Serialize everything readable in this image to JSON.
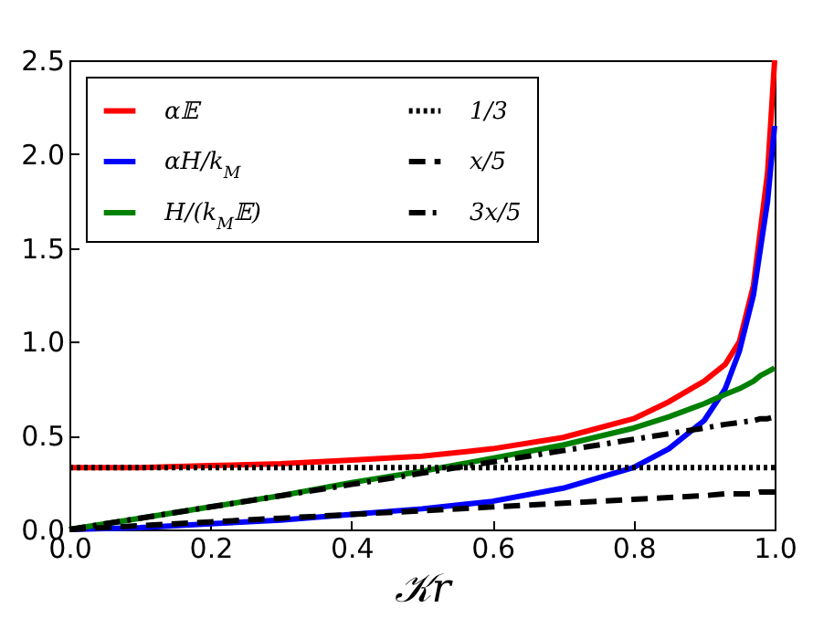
{
  "chart_data": {
    "type": "line",
    "xlabel": "𝒦r",
    "xlim": [
      0,
      1
    ],
    "ylim": [
      0,
      2.5
    ],
    "xticks": [
      {
        "value": 0,
        "label": "0.0"
      },
      0.2,
      0.4,
      0.6,
      0.8,
      {
        "value": 1,
        "label": "1.0"
      }
    ],
    "yticks": [
      {
        "value": 0,
        "label": "0.0"
      },
      0.5,
      {
        "value": 1,
        "label": "1.0"
      },
      1.5,
      {
        "value": 2,
        "label": "2.0"
      },
      2.5
    ],
    "x": [
      0,
      0.1,
      0.2,
      0.3,
      0.4,
      0.5,
      0.6,
      0.7,
      0.8,
      0.85,
      0.9,
      0.93,
      0.95,
      0.97,
      0.98,
      0.99,
      1.0
    ],
    "grid": false,
    "legend": "top left",
    "series": [
      {
        "name": "α𝔼",
        "color": "#ff0000",
        "line_style": "solid",
        "values": [
          0.33,
          0.33,
          0.34,
          0.35,
          0.37,
          0.39,
          0.43,
          0.49,
          0.59,
          0.68,
          0.79,
          0.88,
          1.0,
          1.3,
          1.6,
          1.9,
          2.5
        ]
      },
      {
        "name": "αH/k$_{M}$",
        "color": "#0000ff",
        "line_style": "solid",
        "values": [
          0,
          0.01,
          0.03,
          0.05,
          0.08,
          0.11,
          0.15,
          0.22,
          0.33,
          0.43,
          0.58,
          0.75,
          0.95,
          1.25,
          1.5,
          1.75,
          2.15
        ]
      },
      {
        "name": "H/(k$_{M}$𝔼)",
        "color": "#008000",
        "line_style": "solid",
        "values": [
          0,
          0.06,
          0.12,
          0.18,
          0.25,
          0.31,
          0.38,
          0.45,
          0.54,
          0.6,
          0.67,
          0.72,
          0.75,
          0.79,
          0.82,
          0.84,
          0.86
        ]
      },
      {
        "name": "1/3",
        "color": "#000000",
        "line_style": "dotted",
        "values": [
          0.33,
          0.33,
          0.33,
          0.33,
          0.33,
          0.33,
          0.33,
          0.33,
          0.33,
          0.33,
          0.33,
          0.33,
          0.33,
          0.33,
          0.33,
          0.33,
          0.33
        ]
      },
      {
        "name": "x/5",
        "color": "#000000",
        "line_style": "dashed",
        "values": [
          0,
          0.02,
          0.04,
          0.06,
          0.08,
          0.1,
          0.12,
          0.14,
          0.16,
          0.17,
          0.18,
          0.19,
          0.19,
          0.19,
          0.2,
          0.2,
          0.2
        ]
      },
      {
        "name": "3x/5",
        "color": "#000000",
        "line_style": "dashdot",
        "values": [
          0,
          0.06,
          0.12,
          0.18,
          0.24,
          0.3,
          0.36,
          0.42,
          0.48,
          0.51,
          0.54,
          0.56,
          0.57,
          0.58,
          0.59,
          0.59,
          0.6
        ]
      }
    ]
  }
}
